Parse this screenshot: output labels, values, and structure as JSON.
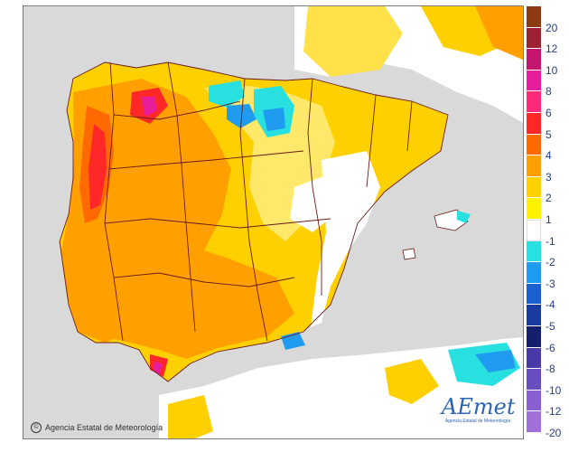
{
  "map": {
    "credit": "Agencia Estatal de Meteorología",
    "logo_text": "AEmet",
    "logo_subtext": "Agencia Estatal de Meteorología"
  },
  "legend": {
    "items": [
      {
        "label": "20",
        "color": "#8b3a14"
      },
      {
        "label": "12",
        "color": "#9c2233"
      },
      {
        "label": "10",
        "color": "#c4166f"
      },
      {
        "label": "8",
        "color": "#e61e9c"
      },
      {
        "label": "6",
        "color": "#ff2a7a"
      },
      {
        "label": "5",
        "color": "#ff2727"
      },
      {
        "label": "4",
        "color": "#ff6a00"
      },
      {
        "label": "3",
        "color": "#ffa000"
      },
      {
        "label": "2",
        "color": "#ffd000"
      },
      {
        "label": "1",
        "color": "#fff200"
      },
      {
        "label": "-1",
        "color": "#ffffff"
      },
      {
        "label": "-2",
        "color": "#28e0e0"
      },
      {
        "label": "-3",
        "color": "#1f9cf0"
      },
      {
        "label": "-4",
        "color": "#1c5fd0"
      },
      {
        "label": "-5",
        "color": "#1a3a9c"
      },
      {
        "label": "-6",
        "color": "#15206c"
      },
      {
        "label": "-8",
        "color": "#4a3aa8"
      },
      {
        "label": "-10",
        "color": "#6a4dbf"
      },
      {
        "label": "-12",
        "color": "#8a5fd0"
      },
      {
        "label": "-20",
        "color": "#a070d8"
      }
    ]
  }
}
